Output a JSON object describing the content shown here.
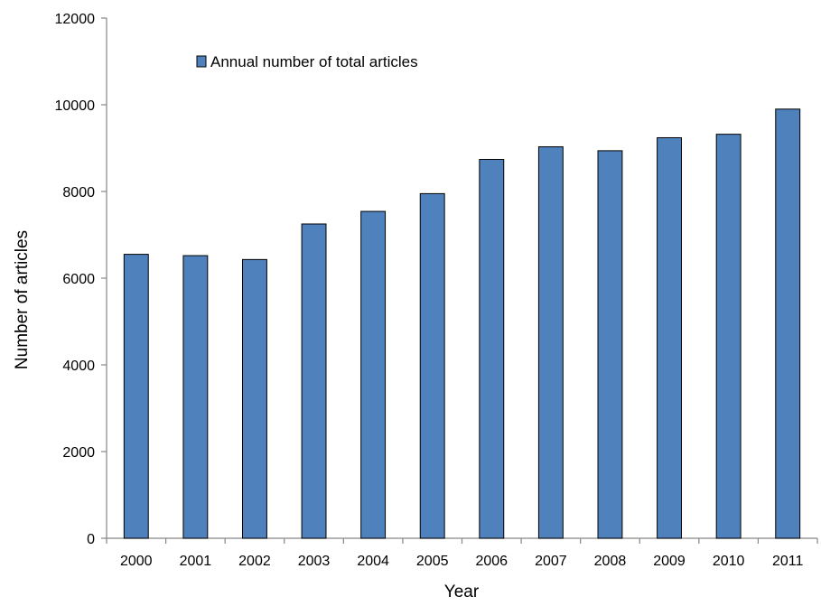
{
  "chart_data": {
    "type": "bar",
    "title": "",
    "xlabel": "Year",
    "ylabel": "Number of articles",
    "categories": [
      "2000",
      "2001",
      "2002",
      "2003",
      "2004",
      "2005",
      "2006",
      "2007",
      "2008",
      "2009",
      "2010",
      "2011"
    ],
    "series": [
      {
        "name": "Annual number of total articles",
        "values": [
          6550,
          6520,
          6430,
          7250,
          7540,
          7950,
          8740,
          9030,
          8940,
          9240,
          9320,
          9900
        ],
        "color": "#4f81bd"
      }
    ],
    "ylim": [
      0,
      12000
    ],
    "yticks": [
      "0",
      "2000",
      "4000",
      "6000",
      "8000",
      "10000",
      "12000"
    ],
    "grid": false,
    "legend_position": "top-left"
  }
}
